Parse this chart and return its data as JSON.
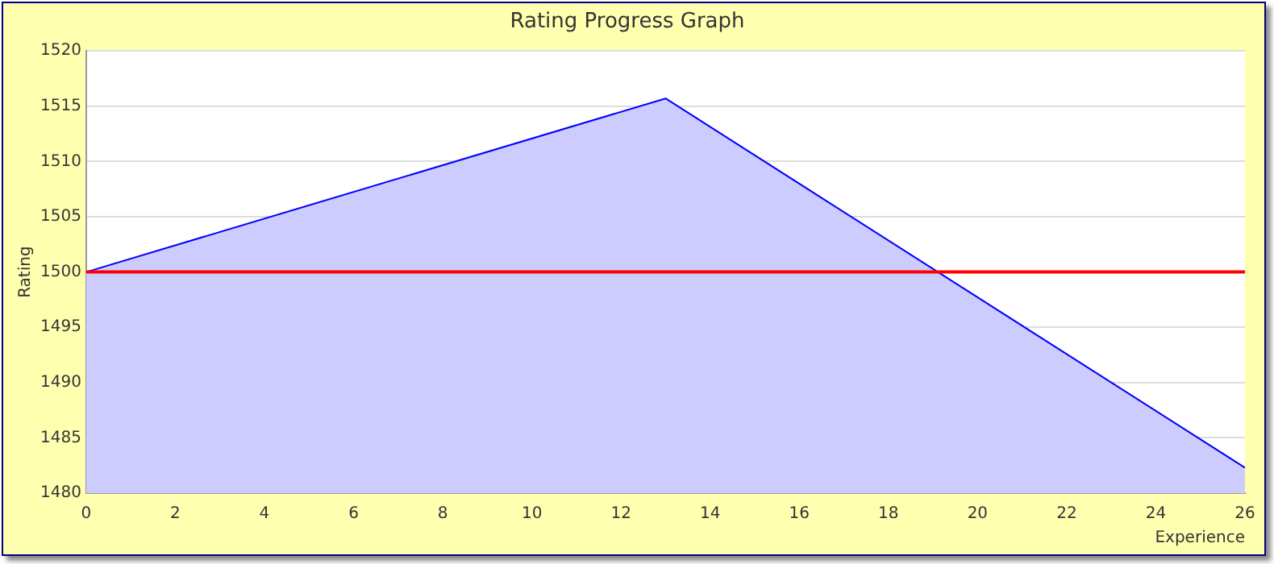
{
  "chart_data": {
    "type": "area",
    "title": "Rating Progress Graph",
    "xlabel": "Experience",
    "ylabel": "Rating",
    "x": [
      0,
      13,
      26
    ],
    "series": [
      {
        "color": "#0000ff",
        "values": [
          1500,
          1515.7,
          1482.3
        ]
      }
    ],
    "xlim": [
      0,
      26
    ],
    "xticks": [
      0,
      2,
      4,
      6,
      8,
      10,
      12,
      14,
      16,
      18,
      20,
      22,
      24,
      26
    ],
    "ylim": [
      1480,
      1520
    ],
    "yticks": [
      1480,
      1485,
      1490,
      1495,
      1500,
      1505,
      1510,
      1515,
      1520
    ],
    "ref_lines": [
      {
        "axis": "y",
        "value": 1500,
        "color": "#ff0000"
      }
    ],
    "grid": "y",
    "legend": false,
    "marker": "none"
  }
}
